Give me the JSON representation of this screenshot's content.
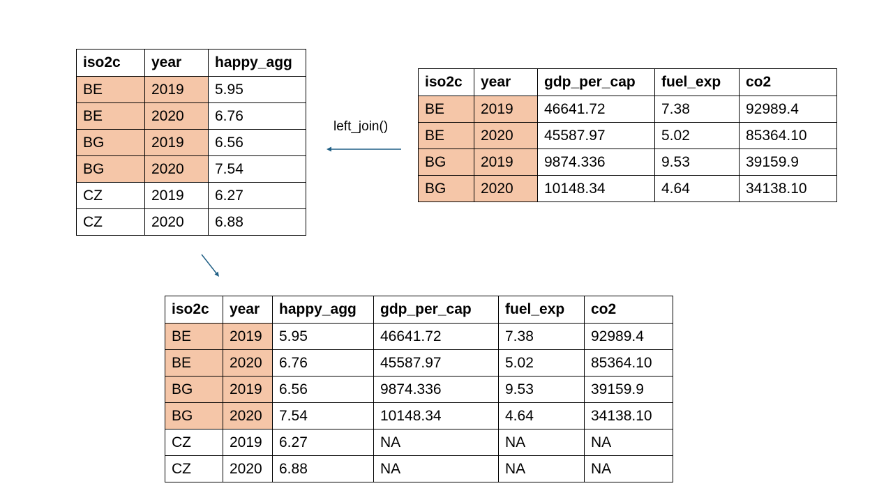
{
  "join_label": "left_join()",
  "highlight_color": "#f5c6a8",
  "arrow_color": "#1f5f85",
  "left_table": {
    "headers": [
      "iso2c",
      "year",
      "happy_agg"
    ],
    "rows": [
      [
        "BE",
        "2019",
        "5.95"
      ],
      [
        "BE",
        "2020",
        "6.76"
      ],
      [
        "BG",
        "2019",
        "6.56"
      ],
      [
        "BG",
        "2020",
        "7.54"
      ],
      [
        "CZ",
        "2019",
        "6.27"
      ],
      [
        "CZ",
        "2020",
        "6.88"
      ]
    ],
    "highlighted_rows": 4
  },
  "right_table": {
    "headers": [
      "iso2c",
      "year",
      "gdp_per_cap",
      "fuel_exp",
      "co2"
    ],
    "rows": [
      [
        "BE",
        "2019",
        "46641.72",
        "7.38",
        "92989.4"
      ],
      [
        "BE",
        "2020",
        "45587.97",
        "5.02",
        "85364.10"
      ],
      [
        "BG",
        "2019",
        "9874.336",
        "9.53",
        "39159.9"
      ],
      [
        "BG",
        "2020",
        "10148.34",
        "4.64",
        "34138.10"
      ]
    ],
    "highlighted_rows": 4
  },
  "result_table": {
    "headers": [
      "iso2c",
      "year",
      "happy_agg",
      "gdp_per_cap",
      "fuel_exp",
      "co2"
    ],
    "rows": [
      [
        "BE",
        "2019",
        "5.95",
        "46641.72",
        "7.38",
        "92989.4"
      ],
      [
        "BE",
        "2020",
        "6.76",
        "45587.97",
        "5.02",
        "85364.10"
      ],
      [
        "BG",
        "2019",
        "6.56",
        "9874.336",
        "9.53",
        "39159.9"
      ],
      [
        "BG",
        "2020",
        "7.54",
        "10148.34",
        "4.64",
        "34138.10"
      ],
      [
        "CZ",
        "2019",
        "6.27",
        "NA",
        "NA",
        "NA"
      ],
      [
        "CZ",
        "2020",
        "6.88",
        "NA",
        "NA",
        "NA"
      ]
    ],
    "highlighted_rows": 4
  }
}
